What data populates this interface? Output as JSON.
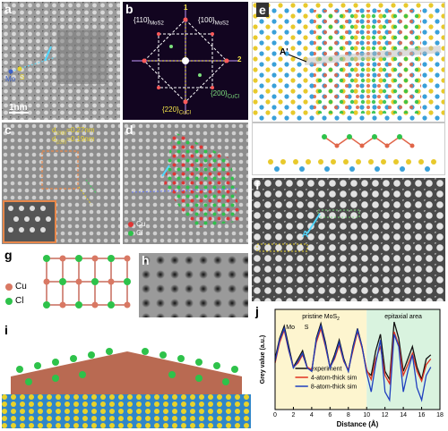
{
  "panels": {
    "a": {
      "label": "a",
      "scale_bar": "1nm",
      "atom_mo": "Mo",
      "atom_s": "S"
    },
    "b": {
      "label": "b",
      "spot_110": "{110}",
      "spot_100": "{100}",
      "sub_mos2": "MoS2",
      "spot_220": "{220}",
      "spot_200": "{200}",
      "sub_cucl": "CuCl",
      "dir_1": "1",
      "dir_2": "2"
    },
    "c": {
      "label": "c",
      "d_line1": "d",
      "d_line2": "d"
    },
    "d": {
      "label": "d",
      "legend_cu": "Cu",
      "legend_cl": "Cl"
    },
    "e": {
      "label": "e",
      "marker": "A'"
    },
    "f": {
      "label": "f",
      "marker": "A"
    },
    "g": {
      "label": "g",
      "legend_cu": "Cu",
      "legend_cl": "Cl"
    },
    "h": {
      "label": "h"
    },
    "i": {
      "label": "i"
    },
    "j": {
      "label": "j"
    }
  },
  "chart_data": {
    "type": "line",
    "xlabel": "Distance (Å)",
    "ylabel": "Grey value (a.u.)",
    "xlim": [
      0,
      18
    ],
    "xticks": [
      "0",
      "2",
      "4",
      "6",
      "8",
      "10",
      "12",
      "14",
      "16",
      "18"
    ],
    "regions": [
      {
        "label": "pristine MoS",
        "sub": "2",
        "from": 0,
        "to": 10,
        "color": "#fdf5cf"
      },
      {
        "label": "epitaxial area",
        "from": 10,
        "to": 18,
        "color": "#d9f3df"
      }
    ],
    "annotations": {
      "mo": "Mo",
      "s": "S"
    },
    "series": [
      {
        "name": "experiment",
        "color": "#111111",
        "x": [
          0,
          0.5,
          1,
          1.5,
          2,
          2.5,
          3,
          3.5,
          4,
          4.5,
          5,
          5.5,
          6,
          6.5,
          7,
          7.5,
          8,
          8.5,
          9,
          9.5,
          10,
          10.5,
          11,
          11.5,
          12,
          12.5,
          13,
          13.5,
          14,
          14.5,
          15,
          15.5,
          16,
          16.5,
          17
        ],
        "y": [
          0.55,
          0.8,
          0.95,
          0.7,
          0.45,
          0.55,
          0.65,
          0.45,
          0.4,
          0.8,
          0.98,
          0.75,
          0.45,
          0.6,
          0.78,
          0.55,
          0.4,
          0.7,
          0.92,
          0.7,
          0.4,
          0.35,
          0.65,
          0.85,
          0.4,
          0.3,
          1.0,
          0.8,
          0.4,
          0.55,
          0.7,
          0.45,
          0.3,
          0.55,
          0.6
        ]
      },
      {
        "name": "4-atom-thick sim",
        "color": "#e0311f",
        "x": [
          0,
          0.5,
          1,
          1.5,
          2,
          2.5,
          3,
          3.5,
          4,
          4.5,
          5,
          5.5,
          6,
          6.5,
          7,
          7.5,
          8,
          8.5,
          9,
          9.5,
          10,
          10.5,
          11,
          11.5,
          12,
          12.5,
          13,
          13.5,
          14,
          14.5,
          15,
          15.5,
          16,
          16.5,
          17
        ],
        "y": [
          0.5,
          0.75,
          0.9,
          0.65,
          0.45,
          0.5,
          0.6,
          0.45,
          0.42,
          0.75,
          0.92,
          0.7,
          0.45,
          0.55,
          0.72,
          0.52,
          0.42,
          0.65,
          0.88,
          0.68,
          0.42,
          0.3,
          0.55,
          0.7,
          0.35,
          0.25,
          0.88,
          0.72,
          0.35,
          0.48,
          0.62,
          0.4,
          0.28,
          0.48,
          0.55
        ]
      },
      {
        "name": "8-atom-thick sim",
        "color": "#1f3fbf",
        "x": [
          0,
          0.5,
          1,
          1.5,
          2,
          2.5,
          3,
          3.5,
          4,
          4.5,
          5,
          5.5,
          6,
          6.5,
          7,
          7.5,
          8,
          8.5,
          9,
          9.5,
          10,
          10.5,
          11,
          11.5,
          12,
          12.5,
          13,
          13.5,
          14,
          14.5,
          15,
          15.5,
          16,
          16.5,
          17
        ],
        "y": [
          0.52,
          0.78,
          0.92,
          0.66,
          0.44,
          0.52,
          0.62,
          0.44,
          0.4,
          0.78,
          0.95,
          0.72,
          0.44,
          0.57,
          0.75,
          0.53,
          0.4,
          0.68,
          0.9,
          0.7,
          0.38,
          0.15,
          0.5,
          0.78,
          0.15,
          0.05,
          0.85,
          0.7,
          0.15,
          0.4,
          0.6,
          0.2,
          0.05,
          0.35,
          0.45
        ]
      }
    ]
  }
}
